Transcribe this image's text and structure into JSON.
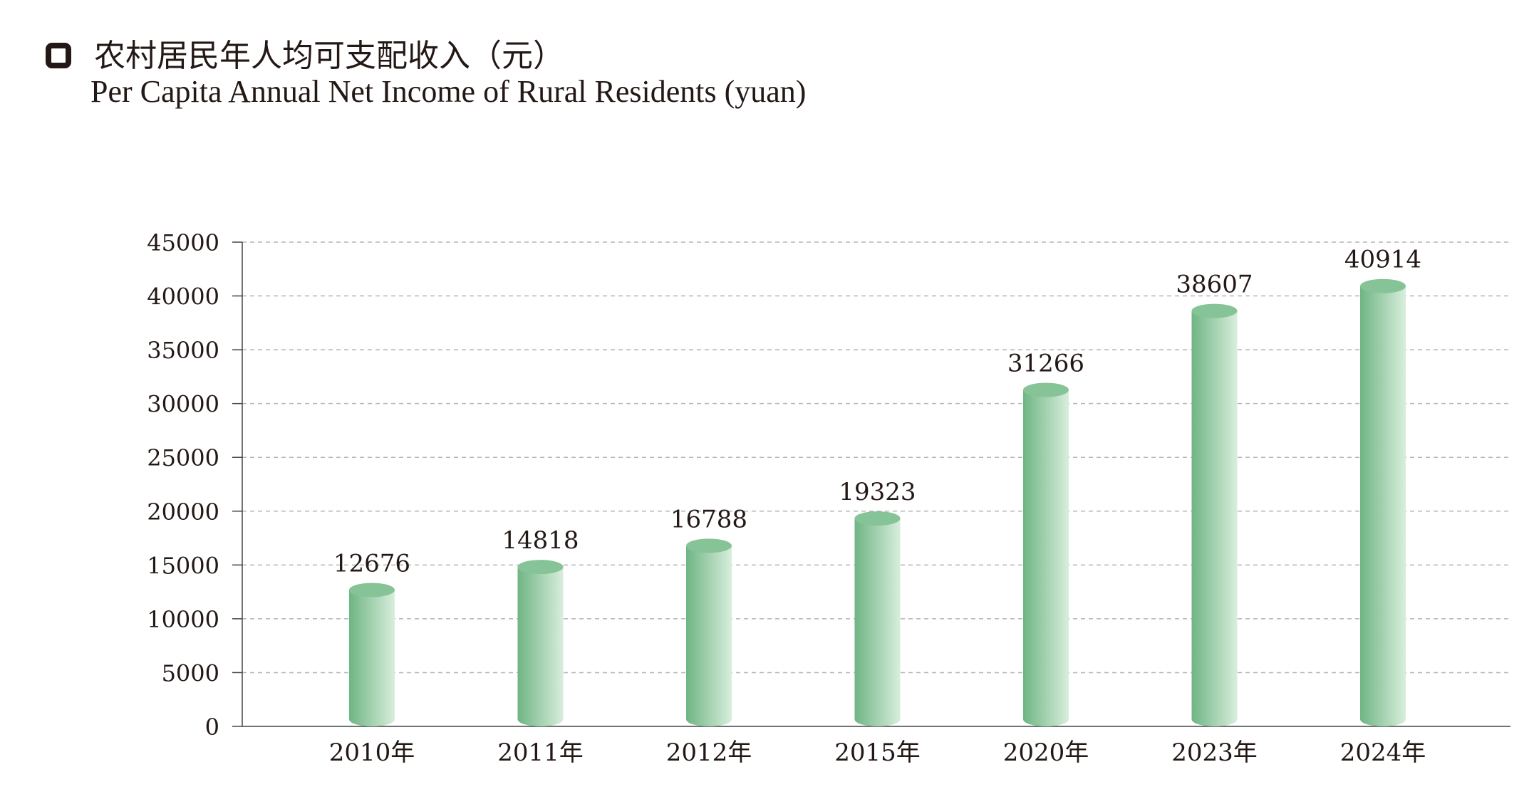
{
  "header": {
    "title_cn": "农村居民年人均可支配收入（元）",
    "title_en": "Per Capita Annual Net Income of Rural Residents (yuan)"
  },
  "colors": {
    "bar_dark": "#6fb584",
    "bar_light": "#d8eedc",
    "bar_top": "#86c497",
    "grid": "#b5b5b5",
    "axis": "#444444",
    "text": "#231815"
  },
  "chart_data": {
    "type": "bar",
    "title": "农村居民年人均可支配收入（元）",
    "subtitle": "Per Capita Annual Net Income of Rural Residents (yuan)",
    "xlabel": "",
    "ylabel": "",
    "categories": [
      "2010年",
      "2011年",
      "2012年",
      "2015年",
      "2020年",
      "2023年",
      "2024年"
    ],
    "values": [
      12676,
      14818,
      16788,
      19323,
      31266,
      38607,
      40914
    ],
    "ylim": [
      0,
      45000
    ],
    "yticks": [
      0,
      5000,
      10000,
      15000,
      20000,
      25000,
      30000,
      35000,
      40000,
      45000
    ],
    "grid": true,
    "data_labels": true,
    "bar_style": "3d-cylinder"
  }
}
